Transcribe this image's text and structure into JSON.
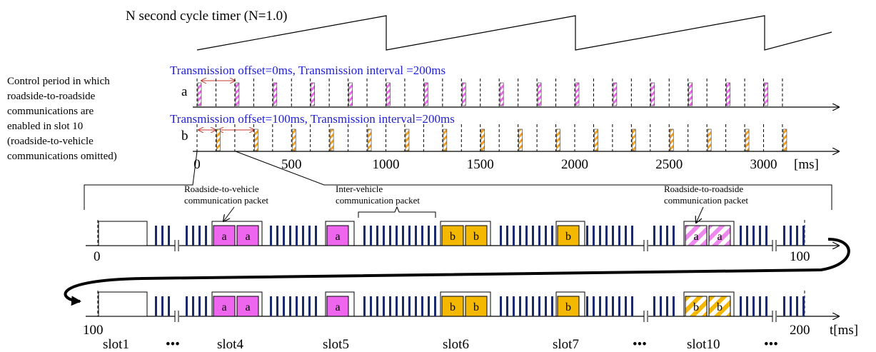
{
  "timer": {
    "label": "N second cycle timer (N=1.0)"
  },
  "control_note": {
    "lines": [
      "Control period in which",
      "roadside-to-roadside",
      "communications are",
      "enabled in slot 10",
      "(roadside-to-vehicle",
      "communications omitted)"
    ]
  },
  "row_a": {
    "letter": "a",
    "caption": "Transmission offset=0ms, Transmission interval =200ms",
    "offset_ms": 0,
    "interval_ms": 200,
    "color": "#ee66ee"
  },
  "row_b": {
    "letter": "b",
    "caption": "Transmission offset=100ms, Transmission interval=200ms",
    "offset_ms": 100,
    "interval_ms": 200,
    "color": "#f0a020"
  },
  "ms_axis": {
    "ticks": [
      "0",
      "500",
      "1000",
      "1500",
      "2000",
      "2500",
      "3000"
    ],
    "unit": "[ms]"
  },
  "callouts": {
    "r2v": [
      "Roadside-to-vehicle",
      "communication packet"
    ],
    "iv": [
      "Inter-vehicle",
      "communication packet"
    ],
    "r2r": [
      "Roadside-to-roadside",
      "communication packet"
    ]
  },
  "timeline1": {
    "start": "0",
    "end": "100"
  },
  "timeline2": {
    "start": "100",
    "end": "200",
    "unit": "t[ms]"
  },
  "packets": {
    "a": "a",
    "b": "b"
  },
  "slots": {
    "s1": "slot1",
    "s4": "slot4",
    "s5": "slot5",
    "s6": "slot6",
    "s7": "slot7",
    "s10": "slot10",
    "dots": "•••"
  },
  "colors": {
    "magenta": "#ee66ee",
    "orange": "#f5b800",
    "navy": "#1b2a6b",
    "caption_blue": "#1f1fd8",
    "arrow_red": "#c0392b"
  }
}
